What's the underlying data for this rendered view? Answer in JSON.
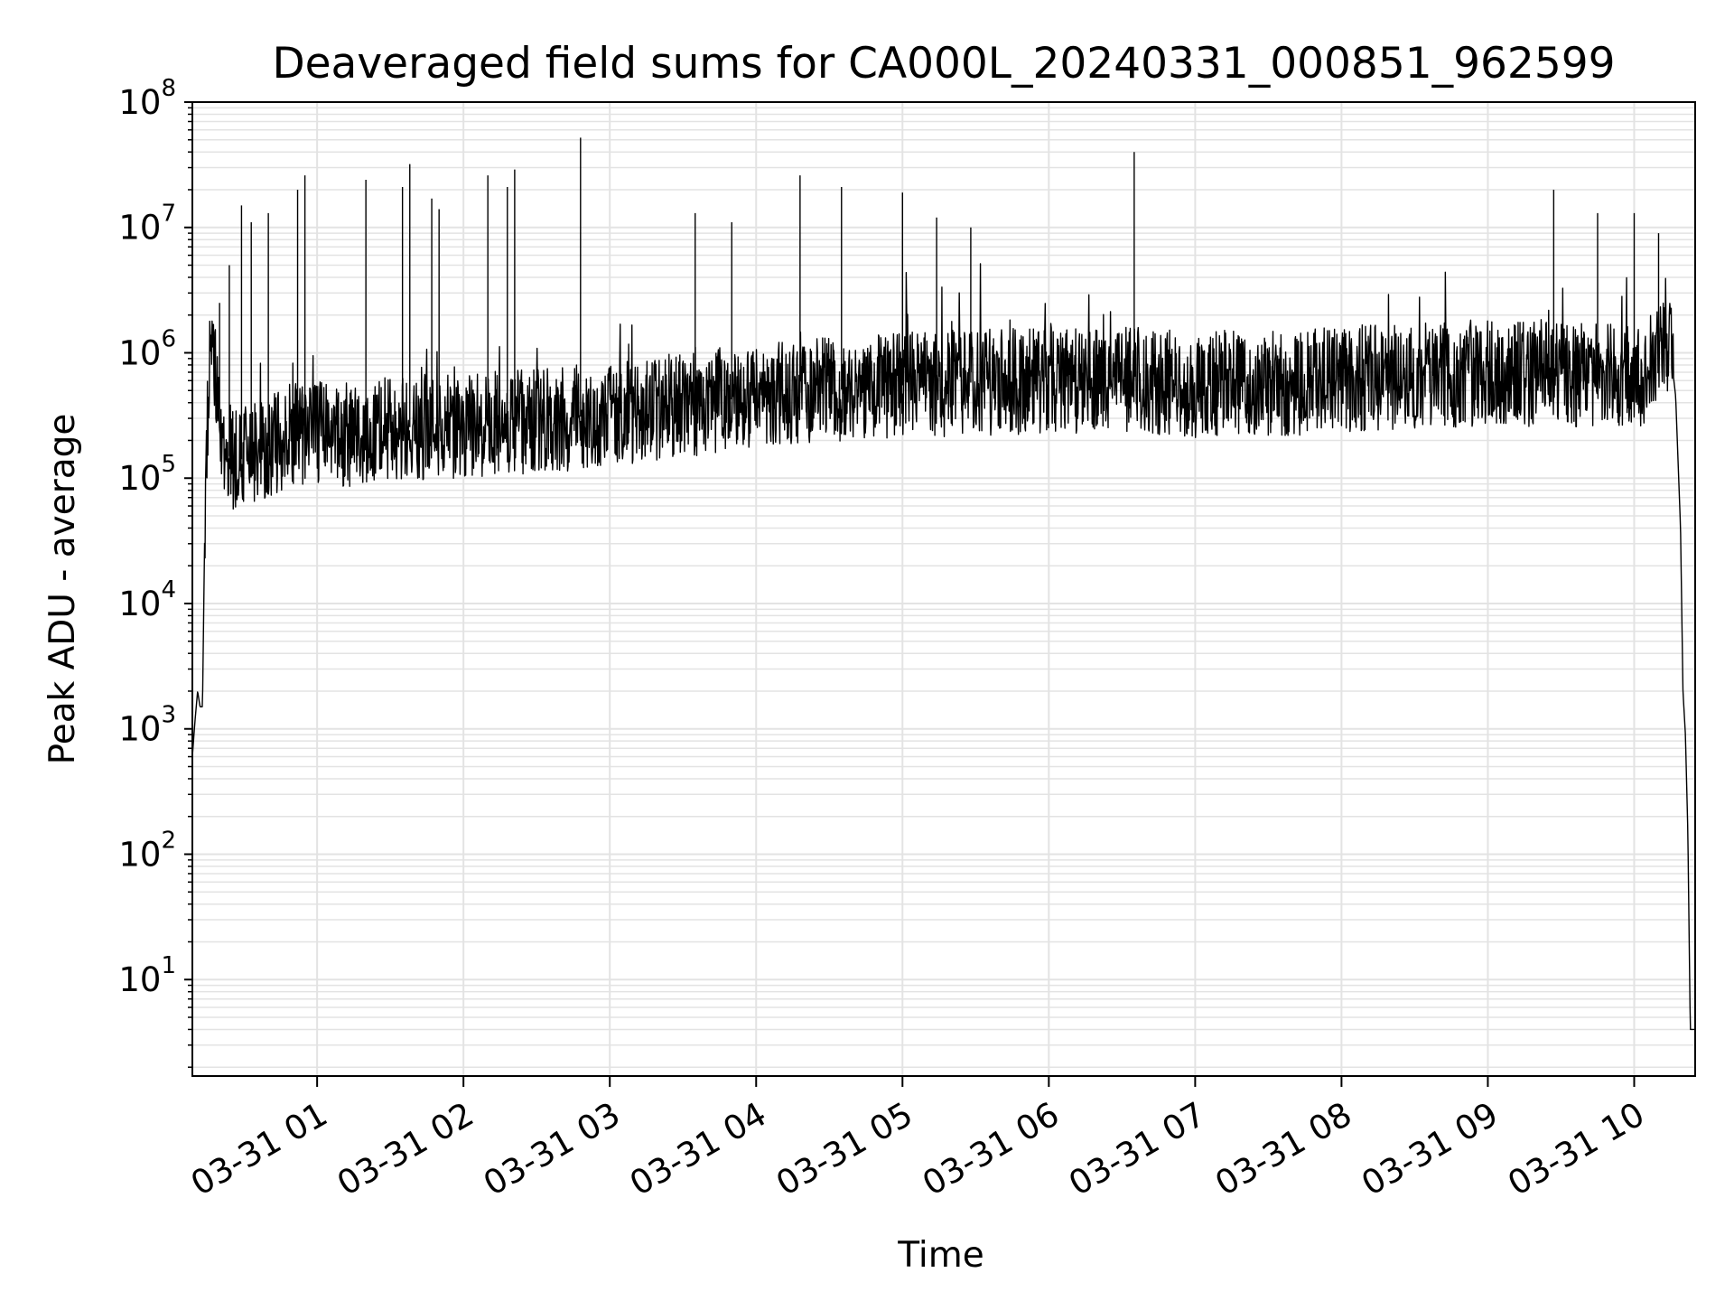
{
  "chart_data": {
    "type": "line",
    "title": "Deaveraged field sums for CA000L_20240331_000851_962599",
    "xlabel": "Time",
    "ylabel": "Peak ADU - average",
    "y_scale": "log",
    "grid": true,
    "legend": "none",
    "line_color": "#000000",
    "grid_color": "#e3e3e3",
    "xlim": [
      "2024-03-31 00:08:51",
      "2024-03-31 10:25:00"
    ],
    "ylim": [
      1.7,
      100000000
    ],
    "x_ticks": [
      {
        "value": "2024-03-31 01:00",
        "label": "03-31 01"
      },
      {
        "value": "2024-03-31 02:00",
        "label": "03-31 02"
      },
      {
        "value": "2024-03-31 03:00",
        "label": "03-31 03"
      },
      {
        "value": "2024-03-31 04:00",
        "label": "03-31 04"
      },
      {
        "value": "2024-03-31 05:00",
        "label": "03-31 05"
      },
      {
        "value": "2024-03-31 06:00",
        "label": "03-31 06"
      },
      {
        "value": "2024-03-31 07:00",
        "label": "03-31 07"
      },
      {
        "value": "2024-03-31 08:00",
        "label": "03-31 08"
      },
      {
        "value": "2024-03-31 09:00",
        "label": "03-31 09"
      },
      {
        "value": "2024-03-31 10:00",
        "label": "03-31 10"
      }
    ],
    "y_ticks": [
      {
        "value": 10,
        "base": "10",
        "exp": "1"
      },
      {
        "value": 100,
        "base": "10",
        "exp": "2"
      },
      {
        "value": 1000,
        "base": "10",
        "exp": "3"
      },
      {
        "value": 10000,
        "base": "10",
        "exp": "4"
      },
      {
        "value": 100000,
        "base": "10",
        "exp": "5"
      },
      {
        "value": 1000000,
        "base": "10",
        "exp": "6"
      },
      {
        "value": 10000000,
        "base": "10",
        "exp": "7"
      },
      {
        "value": 100000000,
        "base": "10",
        "exp": "8"
      }
    ],
    "series": [
      {
        "x": [
          "2024-03-31 00:08:51",
          "2024-03-31 00:09:30",
          "2024-03-31 00:10:00",
          "2024-03-31 00:11:00",
          "2024-03-31 00:12:00",
          "2024-03-31 00:13:00",
          "2024-03-31 00:14:00",
          "2024-03-31 00:15:00",
          "2024-03-31 00:16:00",
          "2024-03-31 00:17:00",
          "2024-03-31 00:18:00",
          "2024-03-31 00:19:00",
          "2024-03-31 00:20:00",
          "2024-03-31 00:21:00",
          "2024-03-31 00:23:00",
          "2024-03-31 00:25:00",
          "2024-03-31 00:30:00",
          "2024-03-31 00:35:00",
          "2024-03-31 00:40:00",
          "2024-03-31 00:45:00",
          "2024-03-31 00:50:00",
          "2024-03-31 01:00:00",
          "2024-03-31 01:15:00",
          "2024-03-31 01:30:00",
          "2024-03-31 01:45:00",
          "2024-03-31 02:00:00",
          "2024-03-31 02:30:00",
          "2024-03-31 03:00:00",
          "2024-03-31 03:30:00",
          "2024-03-31 04:00:00",
          "2024-03-31 04:30:00",
          "2024-03-31 05:00:00",
          "2024-03-31 05:30:00",
          "2024-03-31 06:00:00",
          "2024-03-31 06:30:00",
          "2024-03-31 07:00:00",
          "2024-03-31 07:30:00",
          "2024-03-31 08:00:00",
          "2024-03-31 08:30:00",
          "2024-03-31 09:00:00",
          "2024-03-31 09:30:00",
          "2024-03-31 09:50:00",
          "2024-03-31 10:05:00",
          "2024-03-31 10:10:00",
          "2024-03-31 10:13:00",
          "2024-03-31 10:15:00",
          "2024-03-31 10:17:00",
          "2024-03-31 10:19:00",
          "2024-03-31 10:20:00",
          "2024-03-31 10:21:00",
          "2024-03-31 10:22:00",
          "2024-03-31 10:23:00",
          "2024-03-31 10:24:00",
          "2024-03-31 10:25:00"
        ],
        "y": [
          600,
          900,
          1200,
          2000,
          1500,
          1500,
          50000,
          250000,
          800000,
          1000000,
          700000,
          400000,
          250000,
          180000,
          150000,
          150000,
          140000,
          150000,
          180000,
          200000,
          220000,
          220000,
          230000,
          250000,
          260000,
          260000,
          280000,
          330000,
          380000,
          450000,
          500000,
          550000,
          580000,
          600000,
          620000,
          560000,
          560000,
          620000,
          650000,
          700000,
          650000,
          640000,
          600000,
          1300000,
          1500000,
          1000000,
          450000,
          40000,
          2000,
          900,
          150,
          4,
          4,
          4
        ]
      }
    ],
    "spikes": [
      {
        "x": "2024-03-31 00:20:00",
        "y": 2500000
      },
      {
        "x": "2024-03-31 00:24:00",
        "y": 5000000
      },
      {
        "x": "2024-03-31 00:29:00",
        "y": 15000000
      },
      {
        "x": "2024-03-31 00:33:00",
        "y": 11000000
      },
      {
        "x": "2024-03-31 00:40:00",
        "y": 13000000
      },
      {
        "x": "2024-03-31 00:52:00",
        "y": 20000000
      },
      {
        "x": "2024-03-31 00:55:00",
        "y": 26000000
      },
      {
        "x": "2024-03-31 01:20:00",
        "y": 24000000
      },
      {
        "x": "2024-03-31 01:35:00",
        "y": 21000000
      },
      {
        "x": "2024-03-31 01:38:00",
        "y": 32000000
      },
      {
        "x": "2024-03-31 01:47:00",
        "y": 17000000
      },
      {
        "x": "2024-03-31 01:50:00",
        "y": 14000000
      },
      {
        "x": "2024-03-31 02:10:00",
        "y": 26000000
      },
      {
        "x": "2024-03-31 02:18:00",
        "y": 21000000
      },
      {
        "x": "2024-03-31 02:21:00",
        "y": 29000000
      },
      {
        "x": "2024-03-31 02:48:00",
        "y": 52000000
      },
      {
        "x": "2024-03-31 03:35:00",
        "y": 13000000
      },
      {
        "x": "2024-03-31 03:50:00",
        "y": 11000000
      },
      {
        "x": "2024-03-31 04:18:00",
        "y": 26000000
      },
      {
        "x": "2024-03-31 04:35:00",
        "y": 21000000
      },
      {
        "x": "2024-03-31 05:00:00",
        "y": 19000000
      },
      {
        "x": "2024-03-31 05:14:00",
        "y": 12000000
      },
      {
        "x": "2024-03-31 05:28:00",
        "y": 10000000
      },
      {
        "x": "2024-03-31 06:35:00",
        "y": 40000000
      },
      {
        "x": "2024-03-31 09:27:00",
        "y": 20000000
      },
      {
        "x": "2024-03-31 09:45:00",
        "y": 13000000
      },
      {
        "x": "2024-03-31 10:00:00",
        "y": 13000000
      },
      {
        "x": "2024-03-31 10:10:00",
        "y": 9000000
      }
    ]
  }
}
